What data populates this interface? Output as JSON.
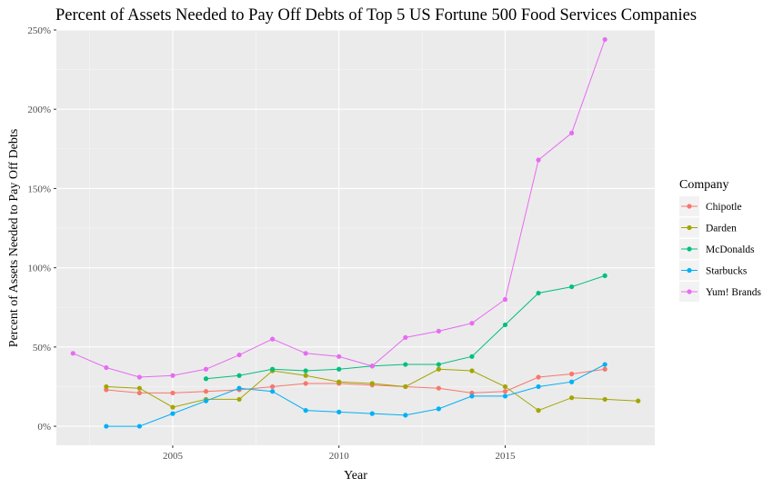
{
  "chart_data": {
    "type": "line",
    "title": "Percent of Assets Needed to Pay Off Debts of Top 5 US Fortune 500 Food Services Companies",
    "xlabel": "Year",
    "ylabel": "Percent of Assets Needed to Pay Off Debts",
    "xlim": [
      2001.5,
      2019.5
    ],
    "ylim": [
      -0.12,
      2.5
    ],
    "x_ticks": [
      2005,
      2010,
      2015
    ],
    "x_tick_labels": [
      "2005",
      "2010",
      "2015"
    ],
    "y_ticks": [
      0,
      0.5,
      1.0,
      1.5,
      2.0,
      2.5
    ],
    "y_tick_labels": [
      "0%",
      "50%",
      "100%",
      "150%",
      "200%",
      "250%"
    ],
    "legend_title": "Company",
    "legend_position": "right",
    "series": [
      {
        "name": "Chipotle",
        "color": "#F8766D",
        "x": [
          2003,
          2004,
          2005,
          2006,
          2007,
          2008,
          2009,
          2010,
          2011,
          2012,
          2013,
          2014,
          2015,
          2016,
          2017,
          2018
        ],
        "values": [
          0.23,
          0.21,
          0.21,
          0.22,
          0.23,
          0.25,
          0.27,
          0.27,
          0.26,
          0.25,
          0.24,
          0.21,
          0.22,
          0.31,
          0.33,
          0.36
        ]
      },
      {
        "name": "Darden",
        "color": "#A3A500",
        "x": [
          2003,
          2004,
          2005,
          2006,
          2007,
          2008,
          2009,
          2010,
          2011,
          2012,
          2013,
          2014,
          2015,
          2016,
          2017,
          2018,
          2019
        ],
        "values": [
          0.25,
          0.24,
          0.12,
          0.17,
          0.17,
          0.35,
          0.32,
          0.28,
          0.27,
          0.25,
          0.36,
          0.35,
          0.25,
          0.1,
          0.18,
          0.17,
          0.16
        ]
      },
      {
        "name": "McDonalds",
        "color": "#00BF7D",
        "x": [
          2006,
          2007,
          2008,
          2009,
          2010,
          2011,
          2012,
          2013,
          2014,
          2015,
          2016,
          2017,
          2018
        ],
        "values": [
          0.3,
          0.32,
          0.36,
          0.35,
          0.36,
          0.38,
          0.39,
          0.39,
          0.44,
          0.64,
          0.84,
          0.88,
          0.95
        ]
      },
      {
        "name": "Starbucks",
        "color": "#00B0F6",
        "x": [
          2003,
          2004,
          2005,
          2006,
          2007,
          2008,
          2009,
          2010,
          2011,
          2012,
          2013,
          2014,
          2015,
          2016,
          2017,
          2018
        ],
        "values": [
          0.0,
          0.0,
          0.08,
          0.16,
          0.24,
          0.22,
          0.1,
          0.09,
          0.08,
          0.07,
          0.11,
          0.19,
          0.19,
          0.25,
          0.28,
          0.39
        ]
      },
      {
        "name": "Yum! Brands",
        "color": "#E76BF3",
        "x": [
          2002,
          2003,
          2004,
          2005,
          2006,
          2007,
          2008,
          2009,
          2010,
          2011,
          2012,
          2013,
          2014,
          2015,
          2016,
          2017,
          2018
        ],
        "values": [
          0.46,
          0.37,
          0.31,
          0.32,
          0.36,
          0.45,
          0.55,
          0.46,
          0.44,
          0.38,
          0.56,
          0.6,
          0.65,
          0.8,
          1.68,
          1.85,
          2.44
        ]
      }
    ]
  }
}
